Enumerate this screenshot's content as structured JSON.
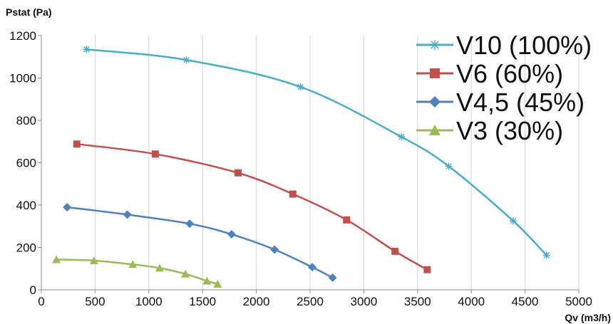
{
  "chart_data": {
    "type": "line",
    "title": "",
    "ylabel": "Pstat (Pa)",
    "xlabel": "Qv (m3/h)",
    "xlim": [
      0,
      5000
    ],
    "ylim": [
      0,
      1200
    ],
    "xticks": [
      0,
      500,
      1000,
      1500,
      2000,
      2500,
      3000,
      3500,
      4000,
      4500,
      5000
    ],
    "yticks": [
      0,
      200,
      400,
      600,
      800,
      1000,
      1200
    ],
    "grid": "vertical",
    "legend_position": "top-right",
    "series": [
      {
        "name": "V10 (100%)",
        "color": "#4bacc6",
        "marker": "star",
        "points": [
          [
            420,
            1135
          ],
          [
            1350,
            1085
          ],
          [
            2410,
            958
          ],
          [
            3350,
            722
          ],
          [
            3790,
            583
          ],
          [
            4390,
            325
          ],
          [
            4700,
            163
          ]
        ]
      },
      {
        "name": "V6 (60%)",
        "color": "#c0504d",
        "marker": "square",
        "points": [
          [
            330,
            688
          ],
          [
            1060,
            641
          ],
          [
            1830,
            552
          ],
          [
            2340,
            452
          ],
          [
            2840,
            330
          ],
          [
            3290,
            182
          ],
          [
            3590,
            95
          ]
        ]
      },
      {
        "name": "V4,5 (45%)",
        "color": "#4f81bd",
        "marker": "diamond",
        "points": [
          [
            240,
            390
          ],
          [
            800,
            355
          ],
          [
            1380,
            312
          ],
          [
            1770,
            262
          ],
          [
            2170,
            190
          ],
          [
            2520,
            107
          ],
          [
            2710,
            57
          ]
        ]
      },
      {
        "name": "V3 (30%)",
        "color": "#9bbb59",
        "marker": "triangle",
        "points": [
          [
            140,
            143
          ],
          [
            490,
            138
          ],
          [
            850,
            120
          ],
          [
            1100,
            103
          ],
          [
            1340,
            75
          ],
          [
            1540,
            42
          ],
          [
            1640,
            27
          ]
        ]
      }
    ]
  }
}
